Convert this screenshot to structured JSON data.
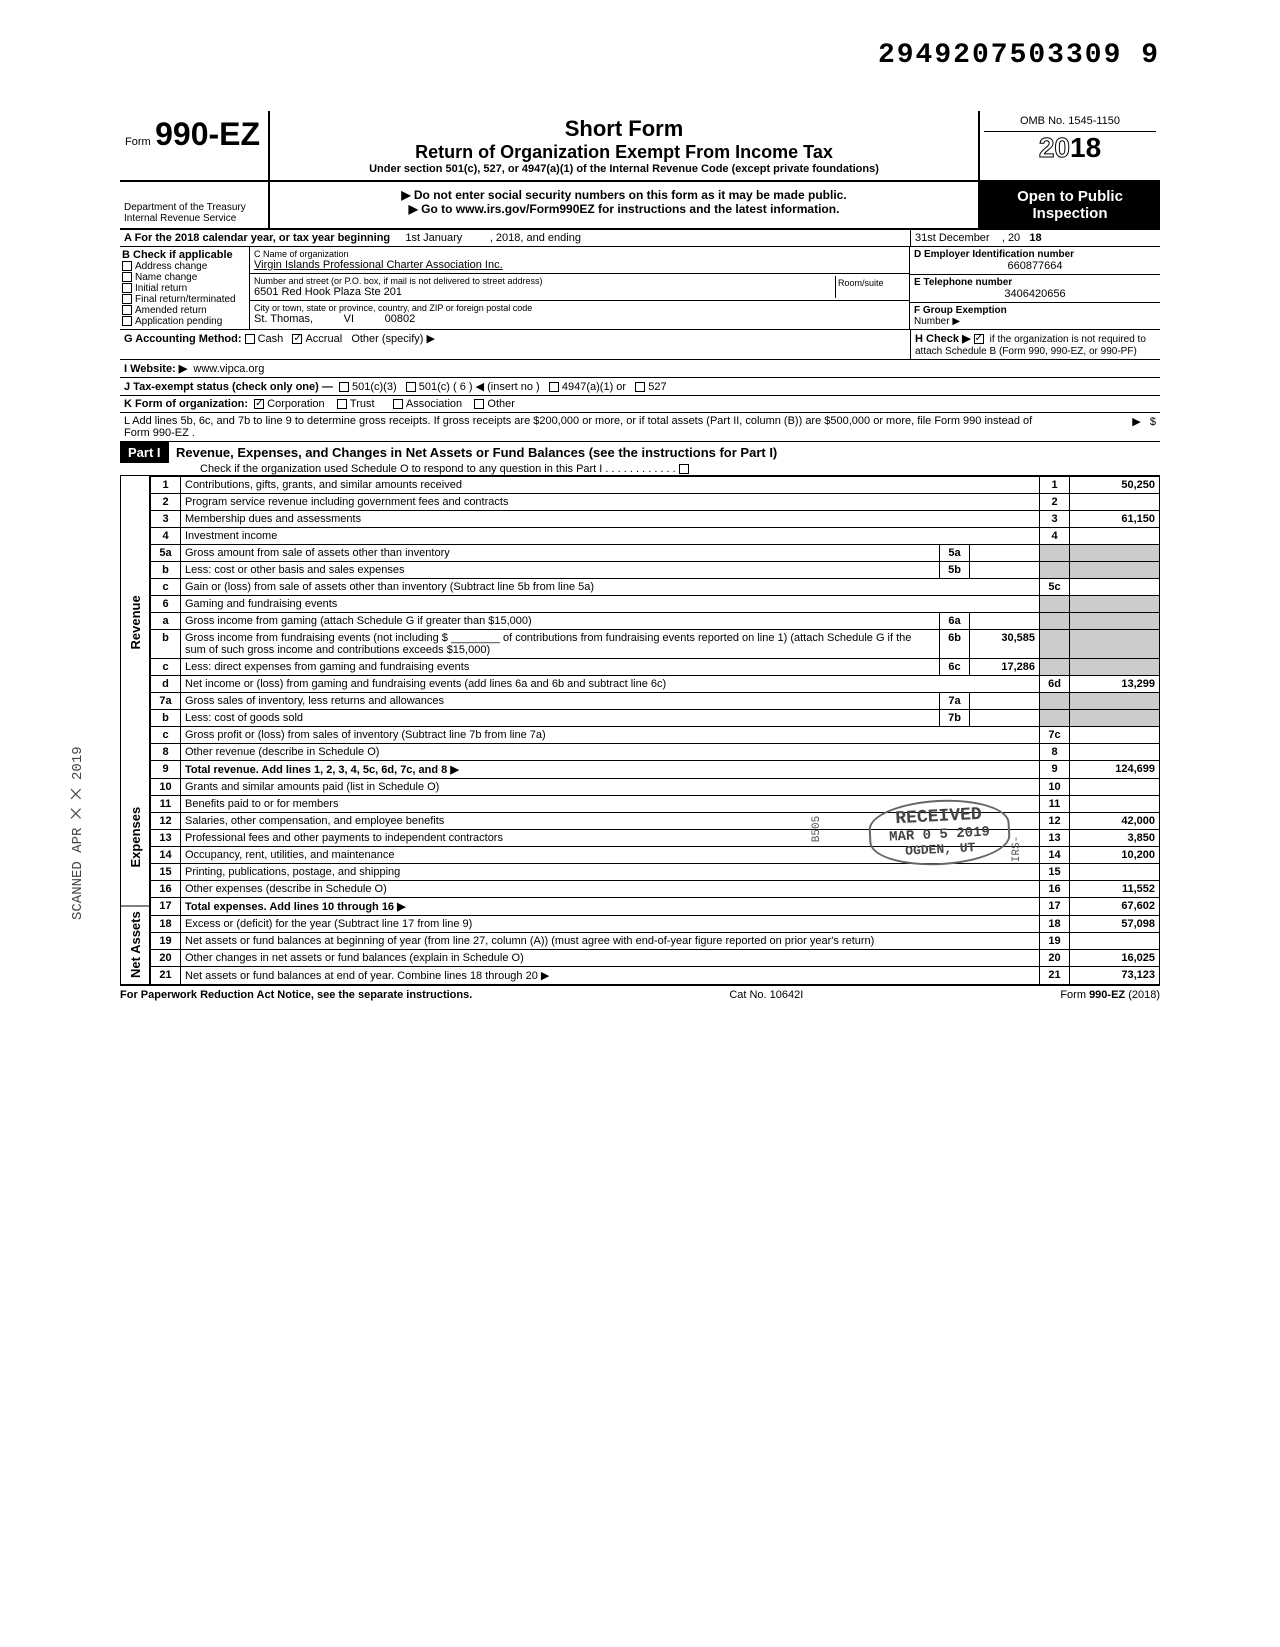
{
  "doc_id": "2949207503309  9",
  "form": {
    "prefix": "Form",
    "number": "990-EZ",
    "title1": "Short Form",
    "title2": "Return of Organization Exempt From Income Tax",
    "title3": "Under section 501(c), 527, or 4947(a)(1) of the Internal Revenue Code (except private foundations)",
    "instr1": "▶ Do not enter social security numbers on this form as it may be made public.",
    "instr2": "▶ Go to www.irs.gov/Form990EZ for instructions and the latest information.",
    "omb": "OMB No. 1545-1150",
    "year_prefix": "20",
    "year_suffix": "18",
    "dept": "Department of the Treasury\nInternal Revenue Service",
    "public1": "Open to Public",
    "public2": "Inspection"
  },
  "line_a": {
    "label": "A  For the 2018 calendar year, or tax year beginning",
    "begin": "1st January",
    "mid": ", 2018, and ending",
    "end": "31st December",
    "yr_label": ", 20",
    "yr": "18"
  },
  "section_b": {
    "header": "B  Check if applicable",
    "items": [
      "Address change",
      "Name change",
      "Initial return",
      "Final return/terminated",
      "Amended return",
      "Application pending"
    ]
  },
  "section_c": {
    "name_label": "C  Name of organization",
    "name": "Virgin Islands Professional Charter Association Inc.",
    "addr_label": "Number and street (or P.O. box, if mail is not delivered to street address)",
    "room_label": "Room/suite",
    "addr": "6501 Red Hook Plaza Ste 201",
    "city_label": "City or town, state or province, country, and ZIP or foreign postal code",
    "city": "St. Thomas,          VI          00802"
  },
  "section_d": {
    "label": "D Employer Identification number",
    "value": "660877664"
  },
  "section_e": {
    "label": "E Telephone number",
    "value": "3406420656"
  },
  "section_f": {
    "label": "F Group Exemption",
    "label2": "Number ▶"
  },
  "line_g": {
    "label": "G  Accounting Method:",
    "opts": [
      "Cash",
      "Accrual",
      "Other (specify) ▶"
    ],
    "checked": 1
  },
  "line_h": {
    "label": "H  Check ▶",
    "text": "if the organization is not required to attach Schedule B (Form 990, 990-EZ, or 990-PF)",
    "checked": true
  },
  "line_i": {
    "label": "I   Website: ▶",
    "value": "www.vipca.org"
  },
  "line_j": {
    "label": "J  Tax-exempt status (check only one) —",
    "opts": [
      "501(c)(3)",
      "501(c) (   6   ) ◀ (insert no )",
      "4947(a)(1) or",
      "527"
    ]
  },
  "line_k": {
    "label": "K  Form of organization:",
    "opts": [
      "Corporation",
      "Trust",
      "Association",
      "Other"
    ],
    "checked": 0
  },
  "line_l": "L  Add lines 5b, 6c, and 7b to line 9 to determine gross receipts. If gross receipts are $200,000 or more, or if total assets (Part II, column (B)) are $500,000 or more, file Form 990 instead of Form 990-EZ .",
  "part1": {
    "label": "Part I",
    "title": "Revenue, Expenses, and Changes in Net Assets or Fund Balances (see the instructions for Part I)",
    "check_note": "Check if the organization used Schedule O to respond to any question in this Part I"
  },
  "sections": {
    "revenue": "Revenue",
    "expenses": "Expenses",
    "netassets": "Net Assets"
  },
  "lines": [
    {
      "n": "1",
      "desc": "Contributions, gifts, grants, and similar amounts received",
      "col": "1",
      "amt": "50,250"
    },
    {
      "n": "2",
      "desc": "Program service revenue including government fees and contracts",
      "col": "2",
      "amt": ""
    },
    {
      "n": "3",
      "desc": "Membership dues and assessments",
      "col": "3",
      "amt": "61,150"
    },
    {
      "n": "4",
      "desc": "Investment income",
      "col": "4",
      "amt": ""
    },
    {
      "n": "5a",
      "desc": "Gross amount from sale of assets other than inventory",
      "icol": "5a",
      "iamt": ""
    },
    {
      "n": "b",
      "desc": "Less: cost or other basis and sales expenses",
      "icol": "5b",
      "iamt": ""
    },
    {
      "n": "c",
      "desc": "Gain or (loss) from sale of assets other than inventory (Subtract line 5b from line 5a)",
      "col": "5c",
      "amt": ""
    },
    {
      "n": "6",
      "desc": "Gaming and fundraising events"
    },
    {
      "n": "a",
      "desc": "Gross income from gaming (attach Schedule G if greater than $15,000)",
      "icol": "6a",
      "iamt": ""
    },
    {
      "n": "b",
      "desc": "Gross income from fundraising events (not including  $ ________ of contributions from fundraising events reported on line 1) (attach Schedule G if the sum of such gross income and contributions exceeds $15,000)",
      "icol": "6b",
      "iamt": "30,585"
    },
    {
      "n": "c",
      "desc": "Less: direct expenses from gaming and fundraising events",
      "icol": "6c",
      "iamt": "17,286"
    },
    {
      "n": "d",
      "desc": "Net income or (loss) from gaming and fundraising events (add lines 6a and 6b and subtract line 6c)",
      "col": "6d",
      "amt": "13,299"
    },
    {
      "n": "7a",
      "desc": "Gross sales of inventory, less returns and allowances",
      "icol": "7a",
      "iamt": ""
    },
    {
      "n": "b",
      "desc": "Less: cost of goods sold",
      "icol": "7b",
      "iamt": ""
    },
    {
      "n": "c",
      "desc": "Gross profit or (loss) from sales of inventory (Subtract line 7b from line 7a)",
      "col": "7c",
      "amt": ""
    },
    {
      "n": "8",
      "desc": "Other revenue (describe in Schedule O)",
      "col": "8",
      "amt": ""
    },
    {
      "n": "9",
      "desc": "Total revenue. Add lines 1, 2, 3, 4, 5c, 6d, 7c, and 8   ▶",
      "col": "9",
      "amt": "124,699",
      "bold": true
    },
    {
      "n": "10",
      "desc": "Grants and similar amounts paid (list in Schedule O)",
      "col": "10",
      "amt": ""
    },
    {
      "n": "11",
      "desc": "Benefits paid to or for members",
      "col": "11",
      "amt": ""
    },
    {
      "n": "12",
      "desc": "Salaries, other compensation, and employee benefits",
      "col": "12",
      "amt": "42,000"
    },
    {
      "n": "13",
      "desc": "Professional fees and other payments to independent contractors",
      "col": "13",
      "amt": "3,850"
    },
    {
      "n": "14",
      "desc": "Occupancy, rent, utilities, and maintenance",
      "col": "14",
      "amt": "10,200"
    },
    {
      "n": "15",
      "desc": "Printing, publications, postage, and shipping",
      "col": "15",
      "amt": ""
    },
    {
      "n": "16",
      "desc": "Other expenses (describe in Schedule O)",
      "col": "16",
      "amt": "11,552"
    },
    {
      "n": "17",
      "desc": "Total expenses. Add lines 10 through 16   ▶",
      "col": "17",
      "amt": "67,602",
      "bold": true
    },
    {
      "n": "18",
      "desc": "Excess or (deficit) for the year (Subtract line 17 from line 9)",
      "col": "18",
      "amt": "57,098"
    },
    {
      "n": "19",
      "desc": "Net assets or fund balances at beginning of year (from line 27, column (A)) (must agree with end-of-year figure reported on prior year's return)",
      "col": "19",
      "amt": ""
    },
    {
      "n": "20",
      "desc": "Other changes in net assets or fund balances (explain in Schedule O)",
      "col": "20",
      "amt": "16,025"
    },
    {
      "n": "21",
      "desc": "Net assets or fund balances at end of year. Combine lines 18 through 20   ▶",
      "col": "21",
      "amt": "73,123"
    }
  ],
  "footer": {
    "left": "For Paperwork Reduction Act Notice, see the separate instructions.",
    "mid": "Cat No. 10642I",
    "right": "Form 990-EZ (2018)"
  },
  "stamps": {
    "scanned": "SCANNED  APR  ⨉ ⨉ 2019",
    "received_top": "RECEIVED",
    "received_date": "MAR 0 5 2019",
    "received_loc": "OGDEN, UT",
    "irs": "IRS-",
    "b505": "B505"
  }
}
